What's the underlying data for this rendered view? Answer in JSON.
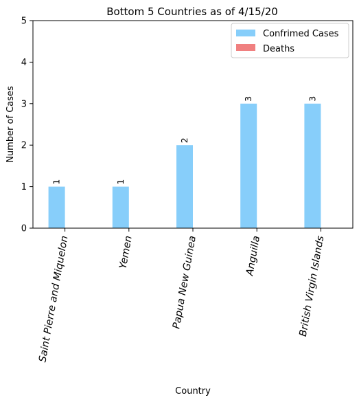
{
  "chart_data": {
    "type": "bar",
    "title": "Bottom 5 Countries as of 4/15/20",
    "xlabel": "Country",
    "ylabel": "Number of Cases",
    "categories": [
      "Saint Pierre and Miquelon",
      "Yemen",
      "Papua New Guinea",
      "Anguilla",
      "British Virgin Islands"
    ],
    "series": [
      {
        "name": "Confrimed Cases",
        "color": "#87cefa",
        "values": [
          1,
          1,
          2,
          3,
          3
        ],
        "labels": [
          "1",
          "1",
          "2",
          "3",
          "3"
        ]
      },
      {
        "name": "Deaths",
        "color": "#f08080",
        "values": [
          0,
          0,
          0,
          0,
          0
        ],
        "labels": []
      }
    ],
    "ylim": [
      0,
      5
    ],
    "yticks": [
      "0",
      "1",
      "2",
      "3",
      "4",
      "5"
    ],
    "grid": false,
    "legend_position": "top-right"
  }
}
